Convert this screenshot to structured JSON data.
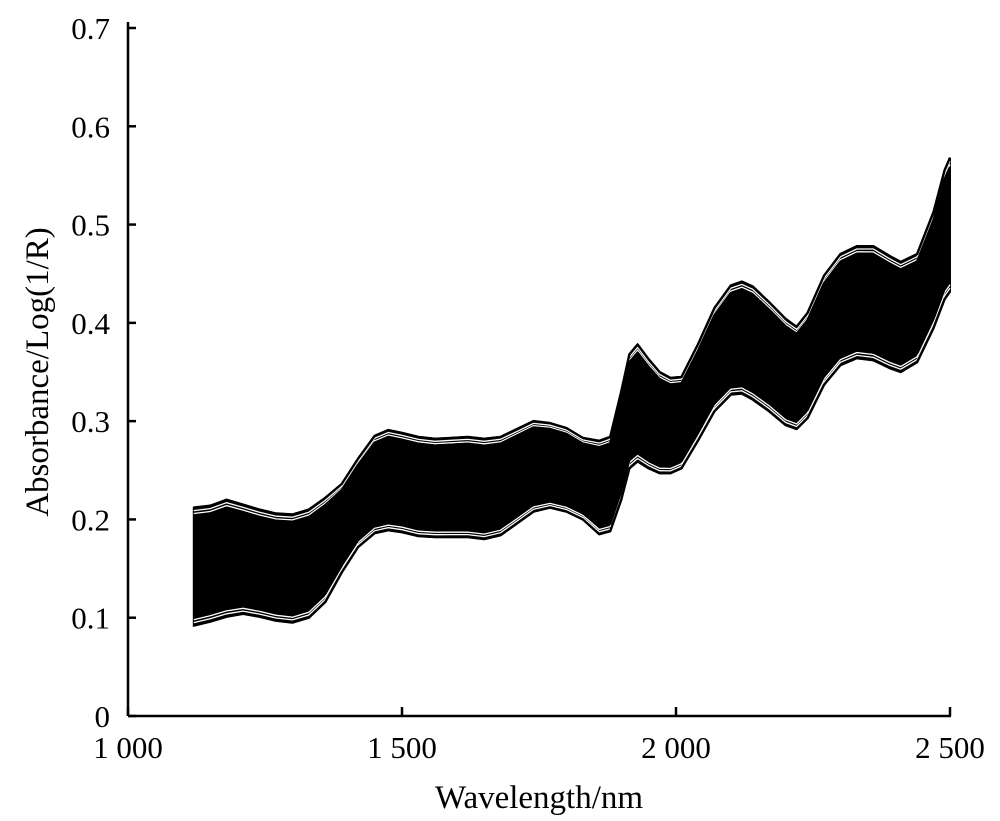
{
  "chart_data": {
    "type": "line",
    "title": "",
    "xlabel": "Wavelength/nm",
    "ylabel": "Absorbance/Log(1/R)",
    "xlim": [
      1000,
      2500
    ],
    "ylim": [
      0,
      0.7
    ],
    "grid": false,
    "legend": "none",
    "line_color": "#000000",
    "x_ticks": [
      {
        "value": 1000,
        "label": "1 000"
      },
      {
        "value": 1500,
        "label": "1 500"
      },
      {
        "value": 2000,
        "label": "2 000"
      },
      {
        "value": 2500,
        "label": "2 500"
      }
    ],
    "y_ticks": [
      {
        "value": 0,
        "label": "0"
      },
      {
        "value": 0.1,
        "label": "0.1"
      },
      {
        "value": 0.2,
        "label": "0.2"
      },
      {
        "value": 0.3,
        "label": "0.3"
      },
      {
        "value": 0.4,
        "label": "0.4"
      },
      {
        "value": 0.5,
        "label": "0.5"
      },
      {
        "value": 0.6,
        "label": "0.6"
      },
      {
        "value": 0.7,
        "label": "0.7"
      }
    ],
    "x": [
      1120,
      1150,
      1180,
      1210,
      1240,
      1270,
      1300,
      1330,
      1360,
      1390,
      1420,
      1450,
      1475,
      1500,
      1530,
      1560,
      1590,
      1620,
      1650,
      1680,
      1710,
      1740,
      1770,
      1800,
      1830,
      1860,
      1880,
      1900,
      1915,
      1930,
      1950,
      1970,
      1990,
      2010,
      2040,
      2070,
      2100,
      2120,
      2140,
      2170,
      2200,
      2220,
      2240,
      2270,
      2300,
      2330,
      2360,
      2390,
      2410,
      2440,
      2470,
      2490,
      2500
    ],
    "upper_envelope": [
      0.212,
      0.214,
      0.22,
      0.215,
      0.21,
      0.206,
      0.205,
      0.21,
      0.222,
      0.236,
      0.262,
      0.285,
      0.291,
      0.288,
      0.284,
      0.282,
      0.283,
      0.284,
      0.282,
      0.284,
      0.292,
      0.3,
      0.298,
      0.293,
      0.283,
      0.28,
      0.284,
      0.33,
      0.368,
      0.378,
      0.363,
      0.35,
      0.344,
      0.345,
      0.378,
      0.415,
      0.438,
      0.442,
      0.437,
      0.421,
      0.404,
      0.396,
      0.41,
      0.448,
      0.47,
      0.478,
      0.478,
      0.468,
      0.462,
      0.47,
      0.513,
      0.555,
      0.568
    ],
    "lower_envelope": [
      0.092,
      0.096,
      0.101,
      0.104,
      0.101,
      0.097,
      0.095,
      0.1,
      0.116,
      0.146,
      0.172,
      0.186,
      0.189,
      0.187,
      0.183,
      0.182,
      0.182,
      0.182,
      0.18,
      0.184,
      0.196,
      0.208,
      0.212,
      0.208,
      0.2,
      0.185,
      0.188,
      0.22,
      0.252,
      0.259,
      0.252,
      0.247,
      0.247,
      0.252,
      0.28,
      0.31,
      0.327,
      0.328,
      0.322,
      0.31,
      0.296,
      0.292,
      0.303,
      0.337,
      0.357,
      0.364,
      0.362,
      0.354,
      0.35,
      0.36,
      0.395,
      0.424,
      0.432
    ],
    "representative_fractions": [
      0.0,
      0.08,
      0.22,
      0.42,
      0.62,
      0.82,
      0.93,
      1.0
    ]
  }
}
